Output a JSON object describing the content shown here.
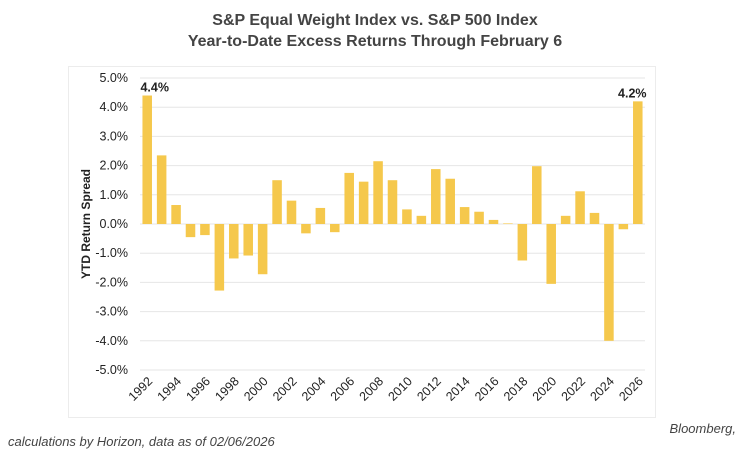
{
  "header": {
    "title": "S&P Equal Weight Index vs. S&P 500 Index",
    "subtitle": "Year-to-Date Excess Returns Through February 6"
  },
  "footer": {
    "source_line1": "Bloomberg,",
    "source_line2": "calculations by Horizon, data as of 02/06/2026"
  },
  "chart_data": {
    "type": "bar",
    "title": "S&P Equal Weight Index vs. S&P 500 Index",
    "subtitle": "Year-to-Date Excess Returns Through February 6",
    "ylabel": "YTD Return Spread",
    "xlabel": "",
    "ylim": [
      -5.0,
      5.0
    ],
    "yticks": [
      5.0,
      4.0,
      3.0,
      2.0,
      1.0,
      0.0,
      -1.0,
      -2.0,
      -3.0,
      -4.0,
      -5.0
    ],
    "ytick_labels": [
      "5.0%",
      "4.0%",
      "3.0%",
      "2.0%",
      "1.0%",
      "0.0%",
      "-1.0%",
      "-2.0%",
      "-3.0%",
      "-4.0%",
      "-5.0%"
    ],
    "grid": true,
    "bar_color": "#F5C84C",
    "categories": [
      1992,
      1993,
      1994,
      1995,
      1996,
      1997,
      1998,
      1999,
      2000,
      2001,
      2002,
      2003,
      2004,
      2005,
      2006,
      2007,
      2008,
      2009,
      2010,
      2011,
      2012,
      2013,
      2014,
      2015,
      2016,
      2017,
      2018,
      2019,
      2020,
      2021,
      2022,
      2023,
      2024,
      2025,
      2026
    ],
    "xtick_labels": [
      "1992",
      "1994",
      "1996",
      "1998",
      "2000",
      "2002",
      "2004",
      "2006",
      "2008",
      "2010",
      "2012",
      "2014",
      "2016",
      "2018",
      "2020",
      "2022",
      "2024",
      "2026"
    ],
    "values": [
      4.4,
      2.35,
      0.65,
      -0.45,
      -0.38,
      -2.28,
      -1.18,
      -1.08,
      -1.72,
      1.5,
      0.8,
      -0.32,
      0.55,
      -0.28,
      1.75,
      1.45,
      2.15,
      1.5,
      0.5,
      0.28,
      1.88,
      1.55,
      0.58,
      0.42,
      0.14,
      0.02,
      -1.25,
      1.98,
      -2.05,
      0.28,
      1.12,
      0.38,
      -4.0,
      -0.18,
      4.2
    ],
    "data_labels": [
      {
        "category": 1992,
        "text": "4.4%"
      },
      {
        "category": 2026,
        "text": "4.2%"
      }
    ]
  }
}
